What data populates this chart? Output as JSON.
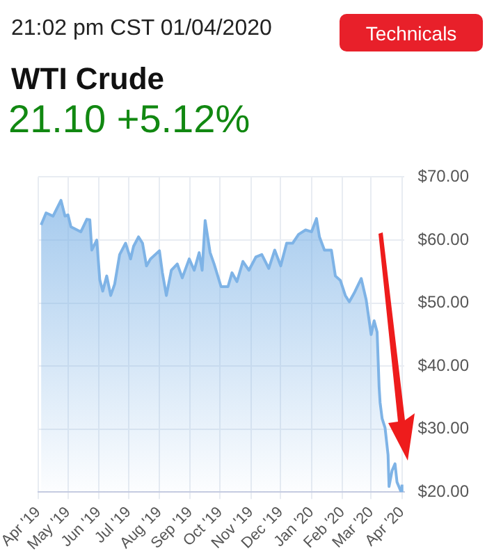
{
  "chart_data": {
    "type": "area",
    "title": "WTI Crude",
    "subtitle": "21:02 pm CST 01/04/2020",
    "annotations": [
      "21.10 +5.12%",
      "Technicals"
    ],
    "x": [
      "2019-04-04",
      "2019-04-09",
      "2019-04-16",
      "2019-04-24",
      "2019-04-28",
      "2019-05-01",
      "2019-05-04",
      "2019-05-14",
      "2019-05-20",
      "2019-05-23",
      "2019-05-25",
      "2019-05-30",
      "2019-06-02",
      "2019-06-05",
      "2019-06-09",
      "2019-06-13",
      "2019-06-17",
      "2019-06-22",
      "2019-06-28",
      "2019-07-03",
      "2019-07-06",
      "2019-07-11",
      "2019-07-15",
      "2019-07-19",
      "2019-07-23",
      "2019-08-01",
      "2019-08-04",
      "2019-08-08",
      "2019-08-13",
      "2019-08-19",
      "2019-08-24",
      "2019-08-31",
      "2019-09-05",
      "2019-09-10",
      "2019-09-13",
      "2019-09-16",
      "2019-09-21",
      "2019-09-25",
      "2019-10-02",
      "2019-10-09",
      "2019-10-13",
      "2019-10-18",
      "2019-10-24",
      "2019-10-30",
      "2019-11-06",
      "2019-11-12",
      "2019-11-19",
      "2019-11-25",
      "2019-12-01",
      "2019-12-07",
      "2019-12-13",
      "2019-12-19",
      "2019-12-26",
      "2020-01-01",
      "2020-01-06",
      "2020-01-09",
      "2020-01-14",
      "2020-01-21",
      "2020-01-25",
      "2020-01-30",
      "2020-02-04",
      "2020-02-08",
      "2020-02-13",
      "2020-02-20",
      "2020-02-25",
      "2020-03-01",
      "2020-03-04",
      "2020-03-07",
      "2020-03-09",
      "2020-03-10",
      "2020-03-12",
      "2020-03-15",
      "2020-03-18",
      "2020-03-19",
      "2020-03-22",
      "2020-03-25",
      "2020-03-27",
      "2020-03-31",
      "2020-04-01"
    ],
    "series": [
      {
        "color": "#7eb3e6",
        "values": [
          62.4,
          64.3,
          63.8,
          66.3,
          63.8,
          64.0,
          62.1,
          61.3,
          63.3,
          63.2,
          58.4,
          60.0,
          53.7,
          51.9,
          54.3,
          51.2,
          53.0,
          57.7,
          59.5,
          57.0,
          59.0,
          60.5,
          59.5,
          55.9,
          57.0,
          58.3,
          54.8,
          51.2,
          55.2,
          56.2,
          54.0,
          57.0,
          55.2,
          58.0,
          55.2,
          63.1,
          58.0,
          56.2,
          52.6,
          52.6,
          54.8,
          53.4,
          56.6,
          55.2,
          57.3,
          57.7,
          55.5,
          58.4,
          55.9,
          59.5,
          59.5,
          60.9,
          61.6,
          61.3,
          63.4,
          60.5,
          58.4,
          58.4,
          54.3,
          53.6,
          51.2,
          50.2,
          51.6,
          53.9,
          50.5,
          45.0,
          47.2,
          45.4,
          36.7,
          34.2,
          31.7,
          30.2,
          25.9,
          20.9,
          23.4,
          24.5,
          21.6,
          20.1,
          21.2
        ]
      }
    ],
    "xlim": [
      "2019-04-01",
      "2020-04-03"
    ],
    "xticks": [
      {
        "value": "2019-04-01",
        "label": "Apr '19"
      },
      {
        "value": "2019-05-01",
        "label": "May '19"
      },
      {
        "value": "2019-06-01",
        "label": "Jun '19"
      },
      {
        "value": "2019-07-01",
        "label": "Jul '19"
      },
      {
        "value": "2019-08-01",
        "label": "Aug '19"
      },
      {
        "value": "2019-09-01",
        "label": "Sep '19"
      },
      {
        "value": "2019-10-01",
        "label": "Oct '19"
      },
      {
        "value": "2019-11-01",
        "label": "Nov '19"
      },
      {
        "value": "2019-12-01",
        "label": "Dec '19"
      },
      {
        "value": "2020-01-01",
        "label": "Jan '20"
      },
      {
        "value": "2020-02-01",
        "label": "Feb '20"
      },
      {
        "value": "2020-03-01",
        "label": "Mar '20"
      },
      {
        "value": "2020-04-01",
        "label": "Apr '20"
      }
    ],
    "ylim": [
      20,
      70
    ],
    "yticks": [
      {
        "value": 20,
        "label": "$20.00"
      },
      {
        "value": 30,
        "label": "$30.00"
      },
      {
        "value": 40,
        "label": "$40.00"
      },
      {
        "value": 50,
        "label": "$50.00"
      },
      {
        "value": 60,
        "label": "$60.00"
      },
      {
        "value": 70,
        "label": "$70.00"
      }
    ],
    "grid": true,
    "legend": false,
    "marker": "none",
    "line_style": "solid"
  }
}
